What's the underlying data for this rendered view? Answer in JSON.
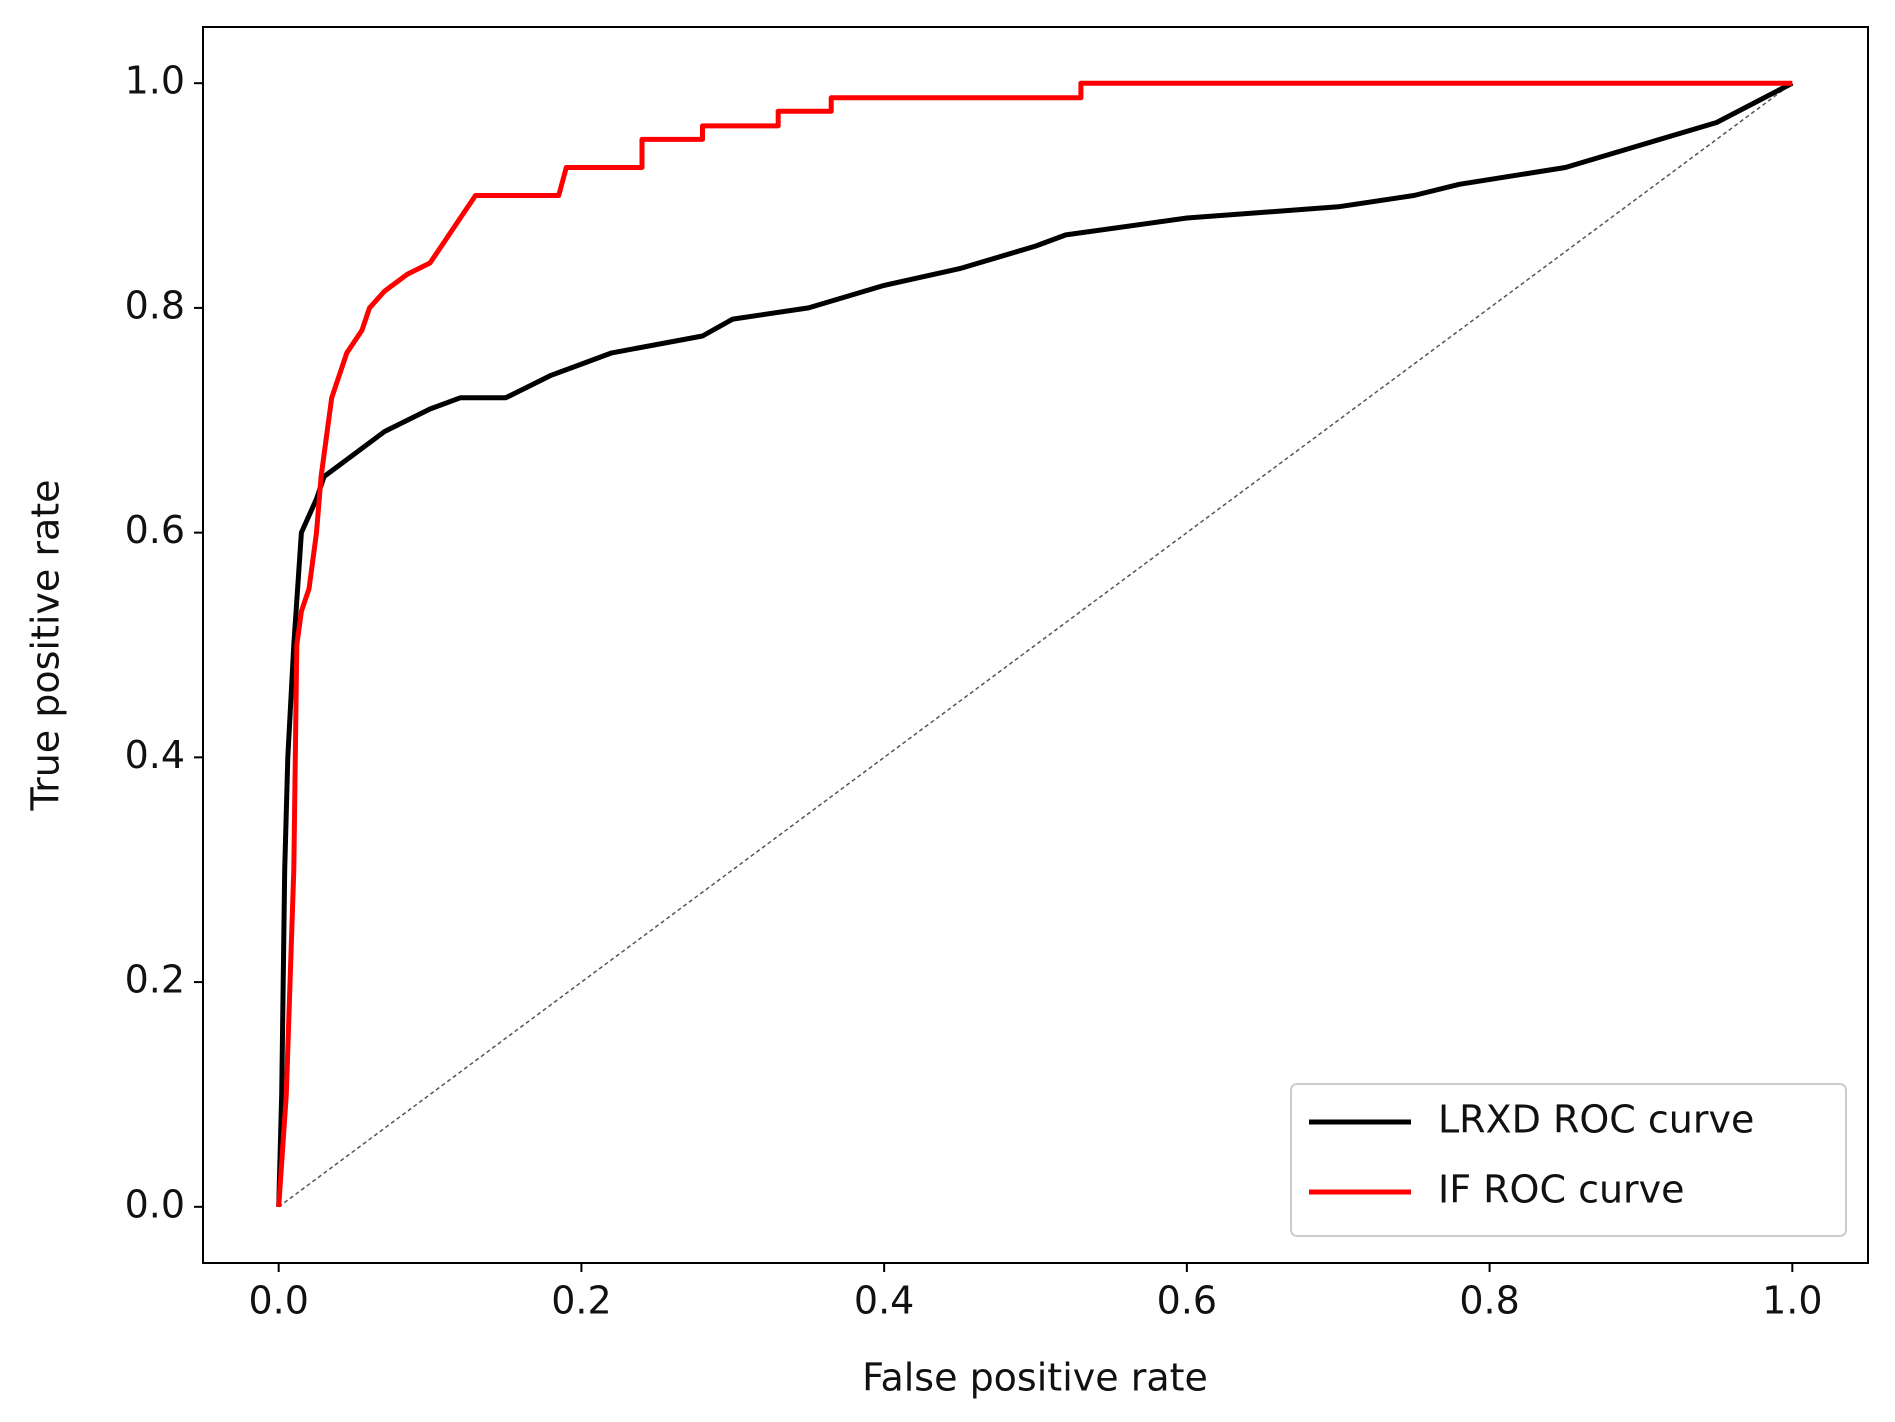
{
  "chart_data": {
    "type": "line",
    "x_label": "False positive rate",
    "y_label": "True positive rate",
    "xlim": [
      -0.05,
      1.05
    ],
    "ylim": [
      -0.05,
      1.05
    ],
    "xticks": [
      {
        "value": 0,
        "label": "0.0"
      },
      0.2,
      0.4,
      0.6,
      0.8,
      {
        "value": 1,
        "label": "1.0"
      }
    ],
    "yticks": [
      {
        "value": 0,
        "label": "0.0"
      },
      0.2,
      0.4,
      0.6,
      0.8,
      {
        "value": 1,
        "label": "1.0"
      }
    ],
    "legend": "lower right",
    "series": [
      {
        "name": "LRXD ROC curve",
        "color": "#000000",
        "x": [
          0,
          0.002,
          0.004,
          0.006,
          0.01,
          0.015,
          0.025,
          0.03,
          0.05,
          0.07,
          0.1,
          0.12,
          0.15,
          0.18,
          0.2,
          0.22,
          0.28,
          0.3,
          0.35,
          0.4,
          0.45,
          0.5,
          0.52,
          0.6,
          0.7,
          0.75,
          0.78,
          0.85,
          0.9,
          0.95,
          1
        ],
        "values": [
          0,
          0.1,
          0.3,
          0.4,
          0.5,
          0.6,
          0.63,
          0.65,
          0.67,
          0.69,
          0.71,
          0.72,
          0.72,
          0.74,
          0.75,
          0.76,
          0.775,
          0.79,
          0.8,
          0.82,
          0.835,
          0.855,
          0.865,
          0.88,
          0.89,
          0.9,
          0.91,
          0.925,
          0.945,
          0.965,
          1
        ]
      },
      {
        "name": "IF ROC curve",
        "color": "#ff0000",
        "x": [
          0,
          0.005,
          0.01,
          0.012,
          0.015,
          0.02,
          0.025,
          0.028,
          0.035,
          0.045,
          0.055,
          0.06,
          0.07,
          0.085,
          0.1,
          0.11,
          0.12,
          0.13,
          0.185,
          0.19,
          0.24,
          0.24,
          0.28,
          0.28,
          0.33,
          0.33,
          0.365,
          0.365,
          0.53,
          0.53,
          1
        ],
        "values": [
          0,
          0.1,
          0.3,
          0.5,
          0.53,
          0.55,
          0.6,
          0.65,
          0.72,
          0.76,
          0.78,
          0.8,
          0.815,
          0.83,
          0.84,
          0.86,
          0.88,
          0.9,
          0.9,
          0.925,
          0.925,
          0.95,
          0.95,
          0.962,
          0.962,
          0.975,
          0.975,
          0.987,
          0.987,
          1,
          1
        ]
      }
    ],
    "reference_line": {
      "color": "#555555",
      "x": [
        0,
        1
      ],
      "values": [
        0,
        1
      ]
    }
  }
}
